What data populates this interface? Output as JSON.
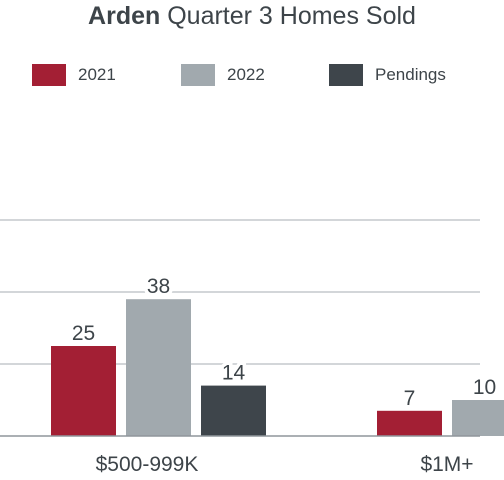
{
  "chart_data": {
    "type": "bar",
    "title_bold": "Arden",
    "title_rest": " Quarter 3 Homes Sold",
    "categories": [
      "$500-999K",
      "$1M+"
    ],
    "series": [
      {
        "name": "2021",
        "color": "#a31f34",
        "values": [
          25,
          7
        ]
      },
      {
        "name": "2022",
        "color": "#a1a9ae",
        "values": [
          38,
          10
        ]
      },
      {
        "name": "Pendings",
        "color": "#3e454b",
        "values": [
          14,
          null
        ]
      }
    ],
    "ylim": [
      0,
      60
    ],
    "grid": true,
    "legend": "top"
  }
}
